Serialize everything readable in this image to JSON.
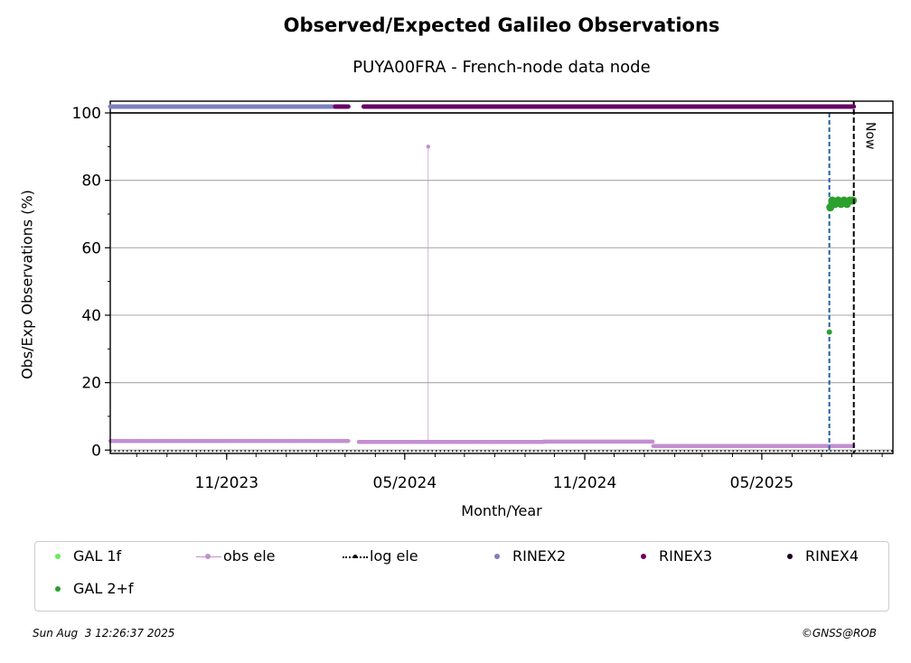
{
  "chart_data": {
    "type": "scatter",
    "title": "Observed/Expected Galileo Observations",
    "subtitle": "PUYA00FRA - French-node data node",
    "xlabel": "Month/Year",
    "ylabel": "Obs/Exp Observations (%)",
    "xlim": [
      "2023-07-05",
      "2025-09-12"
    ],
    "ylim": [
      -1,
      100
    ],
    "yticks": [
      0,
      20,
      40,
      60,
      80,
      100
    ],
    "xticks": [
      {
        "date": "2023-11-01",
        "label": "11/2023"
      },
      {
        "date": "2024-05-01",
        "label": "05/2024"
      },
      {
        "date": "2024-11-01",
        "label": "11/2024"
      },
      {
        "date": "2025-05-01",
        "label": "05/2025"
      }
    ],
    "grid": "y",
    "now_label": "Now",
    "now_date": "2025-08-03",
    "marker_date": "2025-07-09",
    "series": [
      {
        "name": "obs ele",
        "color": "#c38fd0",
        "segments": [
          {
            "from": "2023-07-05",
            "to": "2024-03-05",
            "value": 2.7
          },
          {
            "from": "2024-03-15",
            "to": "2024-09-20",
            "value": 2.4
          },
          {
            "from": "2024-09-20",
            "to": "2025-01-10",
            "value": 2.5
          },
          {
            "from": "2025-01-10",
            "to": "2025-08-03",
            "value": 1.2
          }
        ],
        "spikes": [
          {
            "date": "2024-05-25",
            "value": 90
          }
        ]
      },
      {
        "name": "GAL 2+f",
        "color": "#2ca02c",
        "points": [
          {
            "date": "2025-07-09",
            "value": 35
          },
          {
            "date": "2025-07-10",
            "value": 72
          },
          {
            "date": "2025-07-12",
            "value": 74
          },
          {
            "date": "2025-07-15",
            "value": 73
          },
          {
            "date": "2025-07-18",
            "value": 74
          },
          {
            "date": "2025-07-21",
            "value": 73
          },
          {
            "date": "2025-07-24",
            "value": 74
          },
          {
            "date": "2025-07-27",
            "value": 73
          },
          {
            "date": "2025-07-30",
            "value": 74
          },
          {
            "date": "2025-08-02",
            "value": 74
          }
        ]
      }
    ],
    "rinex_bar": [
      {
        "format": "RINEX2",
        "from": "2023-07-05",
        "to": "2024-02-20"
      },
      {
        "format": "RINEX3",
        "from": "2024-02-20",
        "to": "2024-03-05"
      },
      {
        "format": "RINEX3",
        "from": "2024-03-20",
        "to": "2025-08-03"
      }
    ],
    "legend": [
      {
        "label": "GAL 1f",
        "color": "#66ee55",
        "kind": "dot"
      },
      {
        "label": "obs ele",
        "color": "#c38fd0",
        "kind": "line-dot"
      },
      {
        "label": "log ele",
        "color": "#000000",
        "kind": "dotted"
      },
      {
        "label": "RINEX2",
        "color": "#7f7fc0",
        "kind": "dot"
      },
      {
        "label": "RINEX3",
        "color": "#660066",
        "kind": "dot"
      },
      {
        "label": "RINEX4",
        "color": "#1a0022",
        "kind": "dot"
      },
      {
        "label": "GAL 2+f",
        "color": "#2ca02c",
        "kind": "dot"
      }
    ],
    "rinex_colors": {
      "RINEX2": "#7f7fc0",
      "RINEX3": "#660066",
      "RINEX4": "#1a0022"
    }
  },
  "footer": {
    "timestamp": "Sun Aug  3 12:26:37 2025",
    "credit": "©GNSS@ROB"
  }
}
